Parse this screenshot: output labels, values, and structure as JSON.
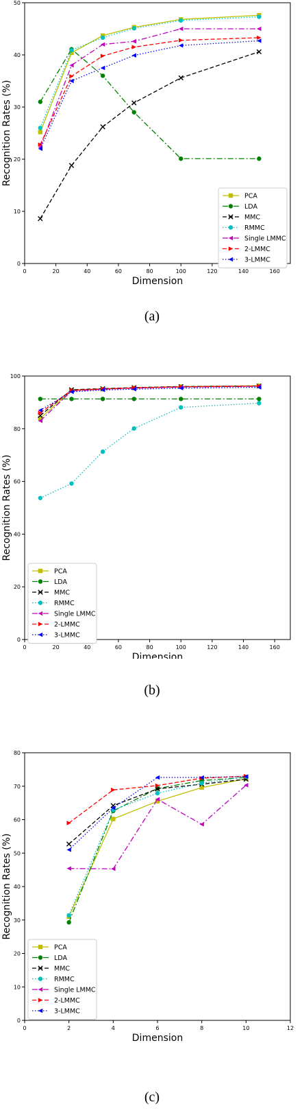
{
  "colors": {
    "PCA": "#bfbf00",
    "LDA": "#008000",
    "MMC": "#000000",
    "RMMC": "#00bfbf",
    "Single LMMC": "#bf00bf",
    "2-LMMC": "#ff0000",
    "3-LMMC": "#0000ff"
  },
  "styles": {
    "PCA": {
      "dash": "",
      "marker": "square"
    },
    "LDA": {
      "dash": "8,3,2,3",
      "marker": "circle"
    },
    "MMC": {
      "dash": "6,3",
      "marker": "x"
    },
    "RMMC": {
      "dash": "1.5,2.5",
      "marker": "circle"
    },
    "Single LMMC": {
      "dash": "8,3,2,3",
      "marker": "tri-left"
    },
    "2-LMMC": {
      "dash": "6,3",
      "marker": "tri-right"
    },
    "3-LMMC": {
      "dash": "1.5,2.5",
      "marker": "tri-left"
    }
  },
  "captions": [
    "(a)",
    "(b)",
    "(c)"
  ],
  "chart_data": [
    {
      "type": "line",
      "xlabel": "Dimension",
      "ylabel": "Recognition Rates (%)",
      "xlim": [
        0,
        170
      ],
      "ylim": [
        0,
        50
      ],
      "xticks": [
        "0",
        "20",
        "40",
        "60",
        "80",
        "100",
        "120",
        "140",
        "160"
      ],
      "yticks": [
        "0",
        "10",
        "20",
        "30",
        "40",
        "50"
      ],
      "legend_position": "bottom-right",
      "x": [
        10,
        30,
        50,
        70,
        100,
        150
      ],
      "series": [
        {
          "name": "PCA",
          "values": [
            25.2,
            40.4,
            43.7,
            45.3,
            46.8,
            47.6
          ]
        },
        {
          "name": "LDA",
          "values": [
            31.0,
            41.1,
            36.0,
            29.0,
            20.1,
            20.1
          ]
        },
        {
          "name": "MMC",
          "values": [
            8.6,
            18.8,
            26.2,
            30.8,
            35.6,
            40.6
          ]
        },
        {
          "name": "RMMC",
          "values": [
            26.0,
            40.9,
            43.3,
            45.1,
            46.6,
            47.3
          ]
        },
        {
          "name": "Single LMMC",
          "values": [
            22.3,
            38.0,
            42.0,
            42.6,
            45.0,
            45.0
          ]
        },
        {
          "name": "2-LMMC",
          "values": [
            22.8,
            35.9,
            39.8,
            41.5,
            42.8,
            43.3
          ]
        },
        {
          "name": "3-LMMC",
          "values": [
            22.0,
            35.0,
            37.5,
            39.9,
            41.8,
            42.7
          ]
        }
      ]
    },
    {
      "type": "line",
      "xlabel": "Dimension",
      "ylabel": "Recognition Rates (%)",
      "xlim": [
        0,
        170
      ],
      "ylim": [
        0,
        100
      ],
      "xticks": [
        "0",
        "20",
        "40",
        "60",
        "80",
        "100",
        "120",
        "140",
        "160"
      ],
      "yticks": [
        "0",
        "20",
        "40",
        "60",
        "80",
        "100"
      ],
      "legend_position": "bottom-left",
      "x": [
        10,
        30,
        50,
        70,
        100,
        150
      ],
      "series": [
        {
          "name": "PCA",
          "values": [
            84.0,
            94.5,
            95.0,
            95.5,
            96.0,
            96.3
          ]
        },
        {
          "name": "LDA",
          "values": [
            91.3,
            91.3,
            91.3,
            91.3,
            91.3,
            91.3
          ]
        },
        {
          "name": "MMC",
          "values": [
            85.0,
            94.8,
            95.2,
            95.6,
            96.0,
            96.2
          ]
        },
        {
          "name": "RMMC",
          "values": [
            53.7,
            59.2,
            71.3,
            80.1,
            88.1,
            89.7
          ]
        },
        {
          "name": "Single LMMC",
          "values": [
            83.0,
            94.3,
            95.0,
            95.4,
            95.8,
            96.1
          ]
        },
        {
          "name": "2-LMMC",
          "values": [
            86.0,
            94.6,
            95.1,
            95.5,
            95.9,
            96.2
          ]
        },
        {
          "name": "3-LMMC",
          "values": [
            87.0,
            94.0,
            94.7,
            95.0,
            95.4,
            95.7
          ]
        }
      ]
    },
    {
      "type": "line",
      "xlabel": "Dimension",
      "ylabel": "Recognition Rates (%)",
      "xlim": [
        0,
        12
      ],
      "ylim": [
        0,
        80
      ],
      "xticks": [
        "0",
        "2",
        "4",
        "6",
        "8",
        "10",
        "12"
      ],
      "yticks": [
        "0",
        "10",
        "20",
        "30",
        "40",
        "50",
        "60",
        "70",
        "80"
      ],
      "legend_position": "bottom-left",
      "x": [
        2,
        4,
        6,
        8,
        10
      ],
      "series": [
        {
          "name": "PCA",
          "values": [
            31.0,
            60.2,
            65.5,
            69.6,
            72.2
          ]
        },
        {
          "name": "LDA",
          "values": [
            29.3,
            62.6,
            69.3,
            71.7,
            72.6
          ]
        },
        {
          "name": "MMC",
          "values": [
            52.7,
            64.2,
            69.2,
            70.6,
            72.1
          ]
        },
        {
          "name": "RMMC",
          "values": [
            31.4,
            62.9,
            67.9,
            70.9,
            72.8
          ]
        },
        {
          "name": "Single LMMC",
          "values": [
            45.4,
            45.3,
            66.1,
            58.6,
            70.3
          ]
        },
        {
          "name": "2-LMMC",
          "values": [
            59.0,
            68.9,
            70.2,
            72.4,
            73.0
          ]
        },
        {
          "name": "3-LMMC",
          "values": [
            51.0,
            63.5,
            72.6,
            72.6,
            72.9
          ]
        }
      ]
    }
  ]
}
